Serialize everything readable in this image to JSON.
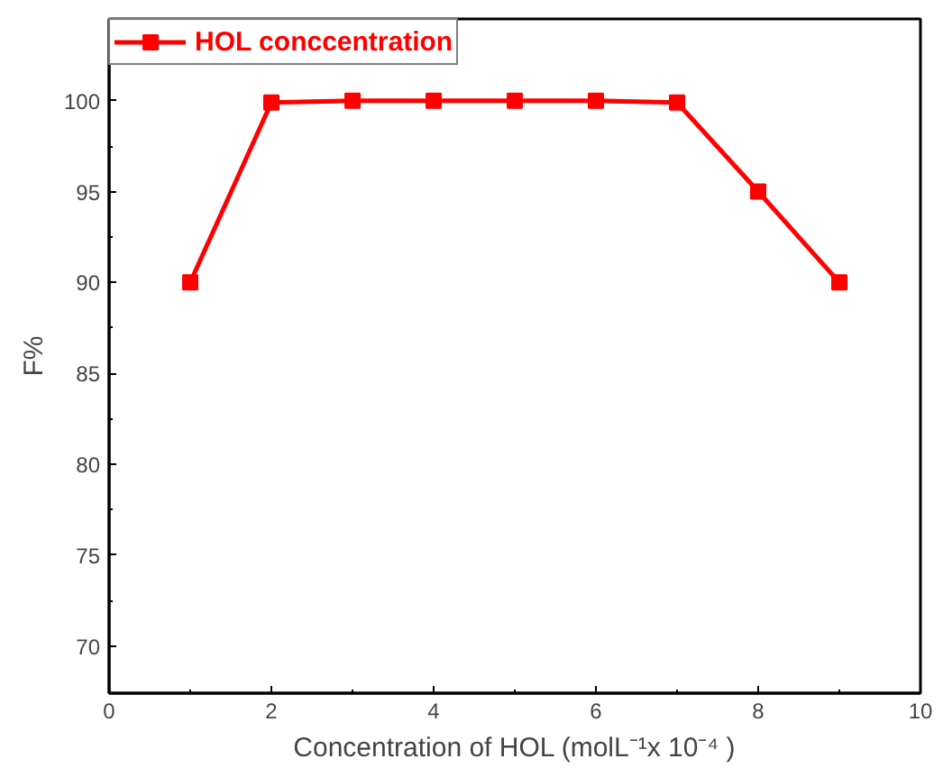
{
  "chart_data": {
    "type": "line",
    "xlabel": "Concentration of HOL (molL⁻¹x 10⁻⁴ )",
    "ylabel": "F%",
    "x": [
      1,
      2,
      3,
      4,
      5,
      6,
      7,
      8,
      9
    ],
    "series": [
      {
        "name": "HOL conccentration",
        "color": "#ff0000",
        "values": [
          90,
          99.9,
          100,
          100,
          100,
          100,
          99.9,
          95,
          90
        ]
      }
    ],
    "xlim": [
      0,
      10
    ],
    "xticks": [
      0,
      2,
      4,
      6,
      8,
      10
    ],
    "ylim": [
      67.4,
      104.5
    ],
    "yticks": [
      70,
      75,
      80,
      85,
      90,
      95,
      100
    ],
    "grid": false,
    "legend": "top left",
    "marker": "square",
    "line_style": "solid"
  }
}
